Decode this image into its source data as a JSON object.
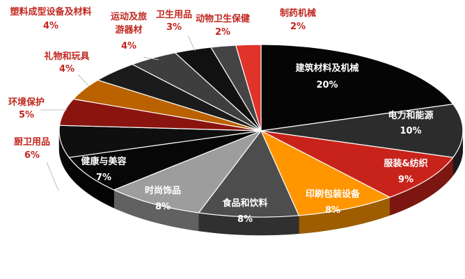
{
  "chart_data": {
    "type": "pie",
    "title": "",
    "style": "3d-exploded-pie",
    "slices": [
      {
        "label": "建筑材料及机械",
        "value": 20,
        "value_label": "20%",
        "color": "#050505"
      },
      {
        "label": "电力和能源",
        "value": 10,
        "value_label": "10%",
        "color": "#2c2c2c"
      },
      {
        "label": "服装&纺织",
        "value": 9,
        "value_label": "9%",
        "color": "#c8231b"
      },
      {
        "label": "印刷包装设备",
        "value": 8,
        "value_label": "8%",
        "color": "#ff9600"
      },
      {
        "label": "食品和饮料",
        "value": 8,
        "value_label": "8%",
        "color": "#4d4d4d"
      },
      {
        "label": "时尚饰品",
        "value": 8,
        "value_label": "8%",
        "color": "#9d9d9d"
      },
      {
        "label": "健康与美容",
        "value": 7,
        "value_label": "7%",
        "color": "#070707"
      },
      {
        "label": "厨卫用品",
        "value": 6,
        "value_label": "6%",
        "color": "#0f0f0f"
      },
      {
        "label": "环境保护",
        "value": 5,
        "value_label": "5%",
        "color": "#8a1410"
      },
      {
        "label": "礼物和玩具",
        "value": 4,
        "value_label": "4%",
        "color": "#bb6200"
      },
      {
        "label": "塑料成型设备及材料",
        "value": 4,
        "value_label": "4%",
        "color": "#1b1b1b"
      },
      {
        "label": "运动及旅游器材",
        "value": 4,
        "value_label": "4%",
        "color": "#3e3e3e"
      },
      {
        "label": "卫生用品",
        "value": 3,
        "value_label": "3%",
        "color": "#111111"
      },
      {
        "label": "动物卫生保健",
        "value": 2,
        "value_label": "2%",
        "color": "#444444"
      },
      {
        "label": "制药机械",
        "value": 2,
        "value_label": "2%",
        "color": "#e0332a"
      }
    ],
    "colors": {
      "outer_label": "#c0271f",
      "inner_label": "#ffffff",
      "leader": "#bfbfbf"
    }
  }
}
